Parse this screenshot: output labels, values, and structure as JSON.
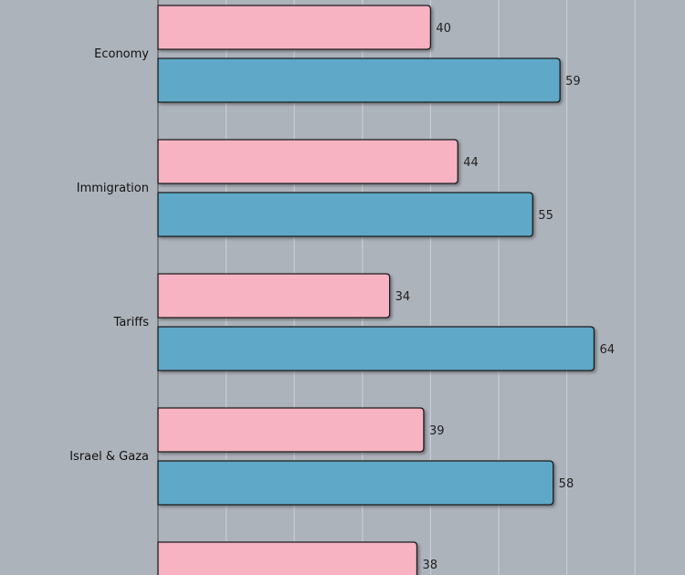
{
  "chart_data": {
    "type": "bar",
    "orientation": "horizontal",
    "categories": [
      "Economy",
      "Immigration",
      "Tariffs",
      "Israel & Gaza",
      ""
    ],
    "series": [
      {
        "values": [
          40,
          44,
          34,
          39,
          38
        ],
        "color": "#f7b3c2"
      },
      {
        "values": [
          59,
          55,
          64,
          58,
          null
        ],
        "color": "#5fa8c8"
      }
    ],
    "xlim": [
      0,
      77
    ],
    "grid": true,
    "grid_step": 10,
    "background": "#adb3bb",
    "data_labels": true
  }
}
